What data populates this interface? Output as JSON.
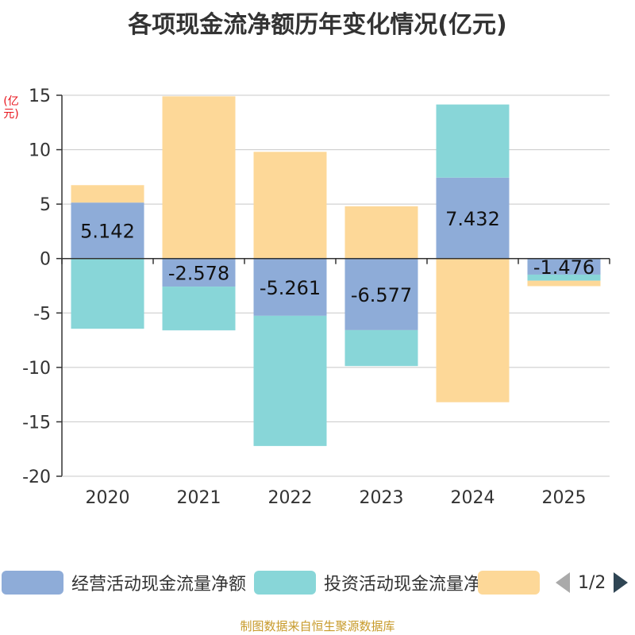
{
  "chart_data": {
    "type": "bar",
    "stacked": true,
    "title": "各项现金流净额历年变化情况(亿元)",
    "ylabel": "(亿元)",
    "ylim": [
      -20,
      15
    ],
    "yticks": [
      15,
      10,
      5,
      0,
      -5,
      -10,
      -15,
      -20
    ],
    "categories": [
      "2020",
      "2021",
      "2022",
      "2023",
      "2024",
      "2025"
    ],
    "series": [
      {
        "name": "经营活动现金流量净额",
        "color": "#8eacd8",
        "values": [
          5.142,
          -2.578,
          -5.261,
          -6.577,
          7.432,
          -1.476
        ],
        "labeled": true
      },
      {
        "name": "投资活动现金流量净额",
        "color": "#88d6d8",
        "values": [
          -6.45,
          -4.02,
          -11.96,
          -3.3,
          6.72,
          -0.56
        ],
        "labeled": false
      },
      {
        "name": "",
        "color": "#fdd898",
        "values": [
          1.6,
          14.9,
          9.8,
          4.8,
          -13.2,
          -0.5
        ],
        "labeled": false
      }
    ]
  },
  "legend": {
    "items": [
      {
        "label": "经营活动现金流量净额",
        "color": "#8eacd8"
      },
      {
        "label": "投资活动现金流量净额",
        "color": "#88d6d8"
      },
      {
        "label": "",
        "color": "#fdd898"
      }
    ],
    "page": "1/2"
  },
  "footer": "制图数据来自恒生聚源数据库"
}
